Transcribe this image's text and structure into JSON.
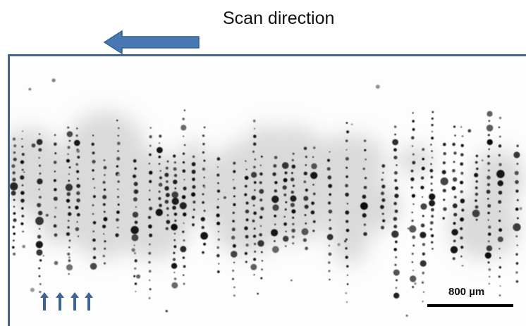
{
  "header": {
    "title": "Scan direction"
  },
  "scan_arrow": {
    "direction": "left",
    "icon": "left-arrow-icon",
    "color": "#4a78b4"
  },
  "image": {
    "description_type": "inverted-fluorescence-micrograph",
    "frame_color": "#45648e",
    "scale_bar": {
      "label": "800 µm"
    },
    "markers": {
      "icon": "up-arrow-icon",
      "count": 4,
      "color": "#3d6494"
    }
  }
}
